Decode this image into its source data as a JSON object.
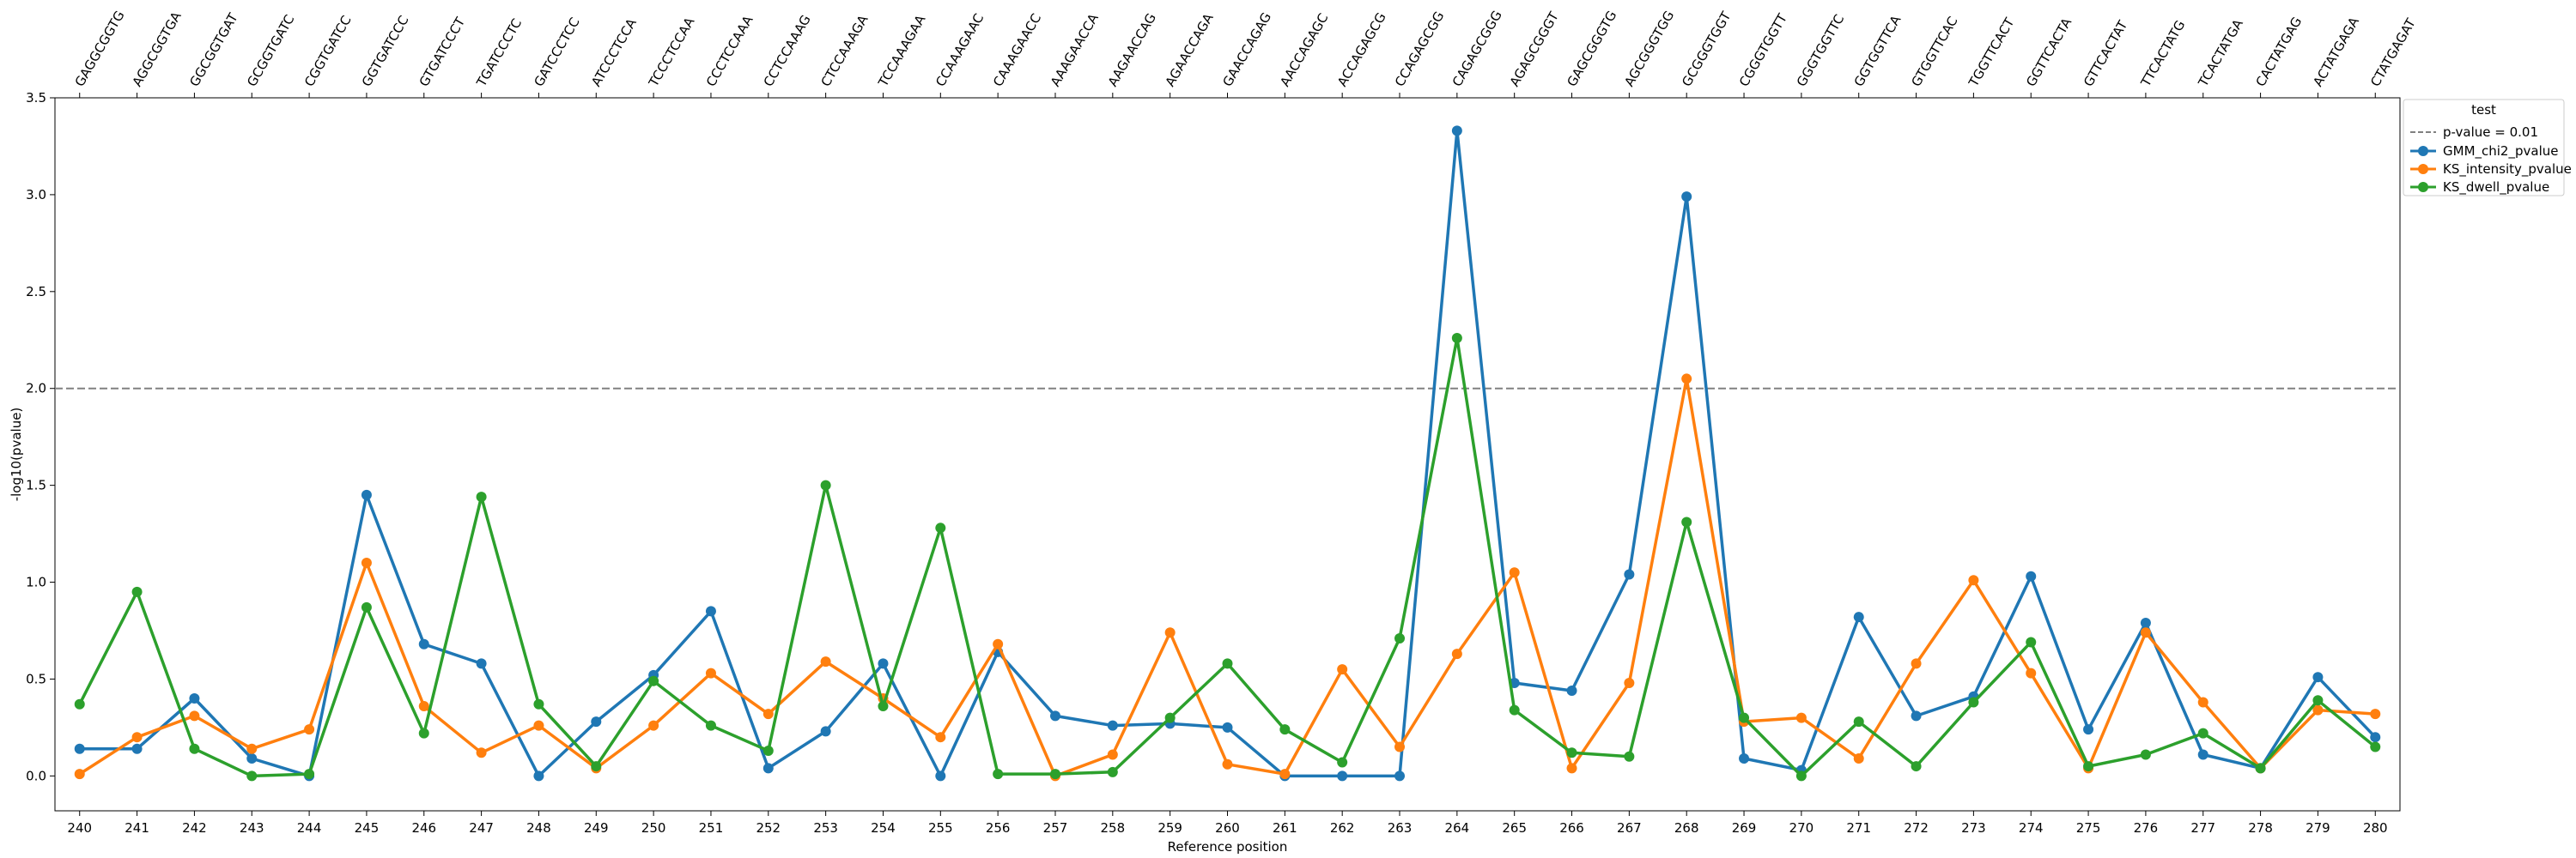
{
  "chart_data": {
    "type": "line",
    "xlabel": "Reference position",
    "ylabel": "-log10(pvalue)",
    "ylim": [
      -0.18,
      3.5
    ],
    "yticks": [
      "0.0",
      "0.5",
      "1.0",
      "1.5",
      "2.0",
      "2.5",
      "3.0",
      "3.5"
    ],
    "ytick_values": [
      0,
      0.5,
      1,
      1.5,
      2,
      2.5,
      3,
      3.5
    ],
    "x": [
      240,
      241,
      242,
      243,
      244,
      245,
      246,
      247,
      248,
      249,
      250,
      251,
      252,
      253,
      254,
      255,
      256,
      257,
      258,
      259,
      260,
      261,
      262,
      263,
      264,
      265,
      266,
      267,
      268,
      269,
      270,
      271,
      272,
      273,
      274,
      275,
      276,
      277,
      278,
      279,
      280
    ],
    "top_labels": [
      "GAGGCGGTG",
      "AGGCGGTGA",
      "GGCGGTGAT",
      "GCGGTGATC",
      "CGGTGATCC",
      "GGTGATCCC",
      "GTGATCCCT",
      "TGATCCCTC",
      "GATCCCTCC",
      "ATCCCTCCA",
      "TCCCTCCAA",
      "CCCTCCAAA",
      "CCTCCAAAG",
      "CTCCAAAGA",
      "TCCAAAGAA",
      "CCAAAGAAC",
      "CAAAGAACC",
      "AAAGAACCA",
      "AAGAACCAG",
      "AGAACCAGA",
      "GAACCAGAG",
      "AACCAGAGC",
      "ACCAGAGCG",
      "CCAGAGCGG",
      "CAGAGCGGG",
      "AGAGCGGGT",
      "GAGCGGGTG",
      "AGCGGGTGG",
      "GCGGGTGGT",
      "CGGGTGGTT",
      "GGGTGGTTC",
      "GGTGGTTCA",
      "GTGGTTCAC",
      "TGGTTCACT",
      "GGTTCACTA",
      "GTTCACTAT",
      "TTCACTATG",
      "TCACTATGA",
      "CACTATGAG",
      "ACTATGAGA",
      "CTATGAGAT"
    ],
    "threshold": {
      "label": "p-value = 0.01",
      "value": 2.0,
      "color": "#808080"
    },
    "legend": {
      "title": "test",
      "position": "upper-right-outside"
    },
    "series": [
      {
        "name": "GMM_chi2_pvalue",
        "color": "#1f77b4",
        "values": [
          0.14,
          0.14,
          0.4,
          0.09,
          0.0,
          1.45,
          0.68,
          0.58,
          0.0,
          0.28,
          0.52,
          0.85,
          0.04,
          0.23,
          0.58,
          0.0,
          0.64,
          0.31,
          0.26,
          0.27,
          0.25,
          0.0,
          0.0,
          0.0,
          3.33,
          0.48,
          0.44,
          1.04,
          2.99,
          0.09,
          0.03,
          0.82,
          0.31,
          0.41,
          1.03,
          0.24,
          0.79,
          0.11,
          0.04,
          0.51,
          0.2
        ]
      },
      {
        "name": "KS_intensity_pvalue",
        "color": "#ff7f0e",
        "values": [
          0.01,
          0.2,
          0.31,
          0.14,
          0.24,
          1.1,
          0.36,
          0.12,
          0.26,
          0.04,
          0.26,
          0.53,
          0.32,
          0.59,
          0.4,
          0.2,
          0.68,
          0.0,
          0.11,
          0.74,
          0.06,
          0.01,
          0.55,
          0.15,
          0.63,
          1.05,
          0.04,
          0.48,
          2.05,
          0.28,
          0.3,
          0.09,
          0.58,
          1.01,
          0.53,
          0.04,
          0.74,
          0.38,
          0.04,
          0.34,
          0.32
        ]
      },
      {
        "name": "KS_dwell_pvalue",
        "color": "#2ca02c",
        "values": [
          0.37,
          0.95,
          0.14,
          0.0,
          0.01,
          0.87,
          0.22,
          1.44,
          0.37,
          0.05,
          0.49,
          0.26,
          0.13,
          1.5,
          0.36,
          1.28,
          0.01,
          0.01,
          0.02,
          0.3,
          0.58,
          0.24,
          0.07,
          0.71,
          2.26,
          0.34,
          0.12,
          0.1,
          1.31,
          0.3,
          0.0,
          0.28,
          0.05,
          0.38,
          0.69,
          0.05,
          0.11,
          0.22,
          0.04,
          0.39,
          0.15
        ]
      }
    ]
  }
}
